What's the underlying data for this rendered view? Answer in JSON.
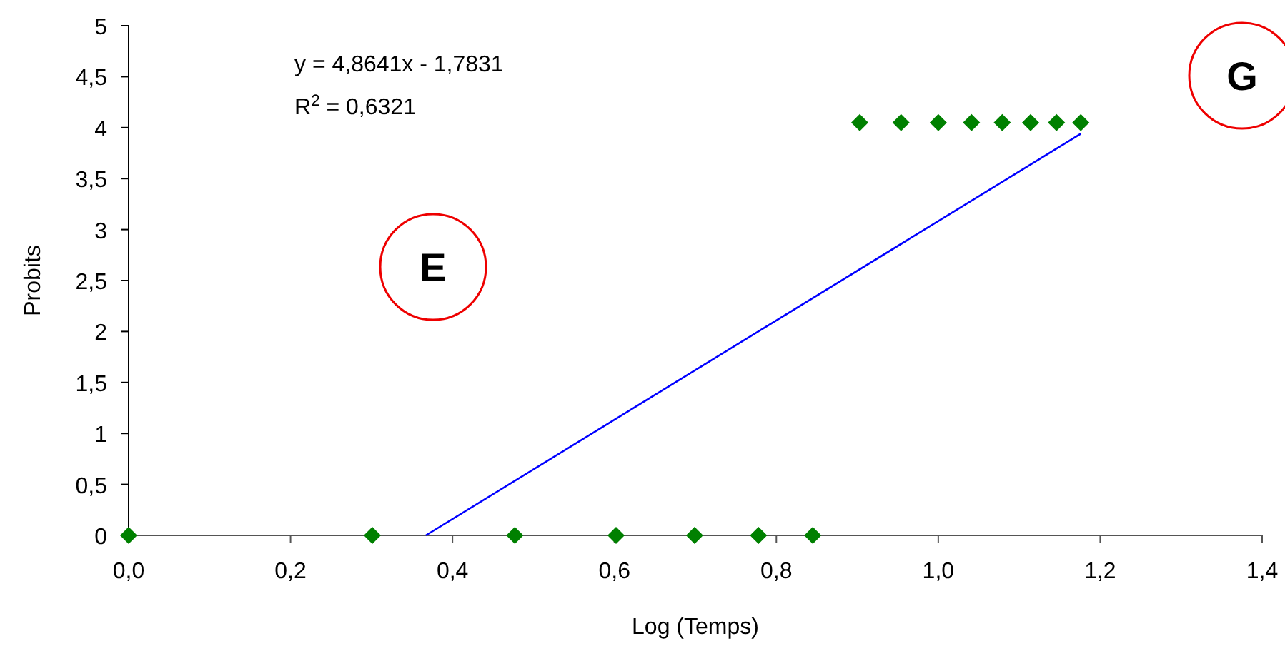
{
  "chart_data": {
    "type": "scatter",
    "xlabel": "Log (Temps)",
    "ylabel": "Probits",
    "xlim": [
      0,
      1.4
    ],
    "ylim": [
      0,
      5
    ],
    "xticks": [
      {
        "value": 0,
        "label": "0,0"
      },
      {
        "value": 0.2,
        "label": "0,2"
      },
      {
        "value": 0.4,
        "label": "0,4"
      },
      {
        "value": 0.6,
        "label": "0,6"
      },
      {
        "value": 0.8,
        "label": "0,8"
      },
      {
        "value": 1,
        "label": "1,0"
      },
      {
        "value": 1.2,
        "label": "1,2"
      },
      {
        "value": 1.4,
        "label": "1,4"
      }
    ],
    "yticks": [
      0,
      {
        "value": 0.5,
        "label": "0,5"
      },
      1,
      {
        "value": 1.5,
        "label": "1,5"
      },
      2,
      {
        "value": 2.5,
        "label": "2,5"
      },
      3,
      {
        "value": 3.5,
        "label": "3,5"
      },
      4,
      {
        "value": 4.5,
        "label": "4,5"
      },
      5
    ],
    "grid": false,
    "series": [
      {
        "marker": "diamond",
        "color": "#008000",
        "x": [
          0,
          0.301,
          0.477,
          0.602,
          0.699,
          0.778,
          0.845,
          0.903,
          0.954,
          1.0,
          1.041,
          1.079,
          1.114,
          1.146,
          1.176
        ],
        "values": [
          0,
          0,
          0,
          0,
          0,
          0,
          0,
          4.05,
          4.05,
          4.05,
          4.05,
          4.05,
          4.05,
          4.05,
          4.05
        ]
      },
      {
        "type": "line",
        "color": "#0000ff",
        "x": [
          0.367,
          1.176
        ],
        "values": [
          0,
          3.94
        ]
      }
    ],
    "annotations": [
      "y = 4,8641x - 1,7831",
      "R$^{2}$ = 0,6321",
      "E",
      "G"
    ]
  }
}
